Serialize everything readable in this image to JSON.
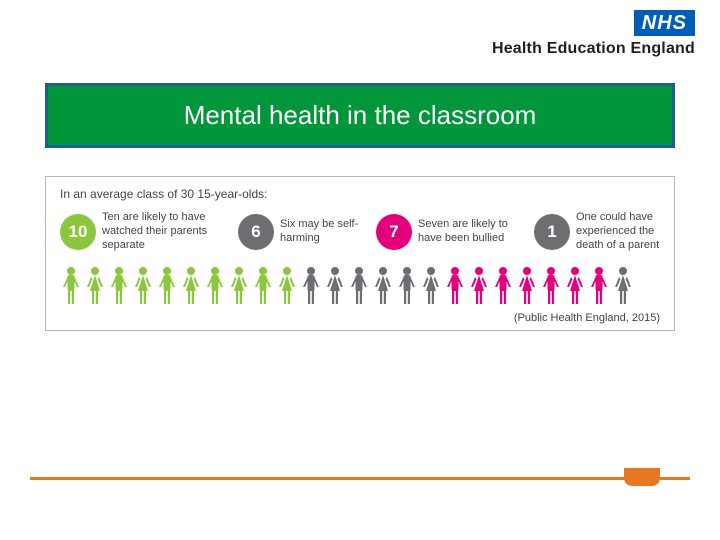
{
  "brand": {
    "logo_text": "NHS",
    "logo_bg": "#005eb8",
    "logo_fg": "#ffffff",
    "subtitle": "Health Education England",
    "subtitle_color": "#231f20"
  },
  "title": {
    "text": "Mental health in the classroom",
    "bg": "#009639",
    "border": "#1f5e8e",
    "color": "#ffffff",
    "fontsize": 26
  },
  "infographic": {
    "intro": "In an average class of 30 15-year-olds:",
    "border_color": "#b7b7b7",
    "text_color": "#444444",
    "stats": [
      {
        "number": "10",
        "label": "Ten are likely to have watched their parents separate",
        "color": "#8cc63f"
      },
      {
        "number": "6",
        "label": "Six may be self-harming",
        "color": "#6d6e71"
      },
      {
        "number": "7",
        "label": "Seven are likely to have been bullied",
        "color": "#e4007c"
      },
      {
        "number": "1",
        "label": "One could have experienced the death of a parent",
        "color": "#6d6e71"
      }
    ],
    "figures": [
      {
        "c": "#8cc63f",
        "g": "m"
      },
      {
        "c": "#8cc63f",
        "g": "f"
      },
      {
        "c": "#8cc63f",
        "g": "m"
      },
      {
        "c": "#8cc63f",
        "g": "f"
      },
      {
        "c": "#8cc63f",
        "g": "m"
      },
      {
        "c": "#8cc63f",
        "g": "f"
      },
      {
        "c": "#8cc63f",
        "g": "m"
      },
      {
        "c": "#8cc63f",
        "g": "f"
      },
      {
        "c": "#8cc63f",
        "g": "m"
      },
      {
        "c": "#8cc63f",
        "g": "f"
      },
      {
        "c": "#6d6e71",
        "g": "m"
      },
      {
        "c": "#6d6e71",
        "g": "f"
      },
      {
        "c": "#6d6e71",
        "g": "m"
      },
      {
        "c": "#6d6e71",
        "g": "f"
      },
      {
        "c": "#6d6e71",
        "g": "m"
      },
      {
        "c": "#6d6e71",
        "g": "f"
      },
      {
        "c": "#e4007c",
        "g": "m"
      },
      {
        "c": "#e4007c",
        "g": "f"
      },
      {
        "c": "#e4007c",
        "g": "m"
      },
      {
        "c": "#e4007c",
        "g": "f"
      },
      {
        "c": "#e4007c",
        "g": "m"
      },
      {
        "c": "#e4007c",
        "g": "f"
      },
      {
        "c": "#e4007c",
        "g": "m"
      },
      {
        "c": "#6d6e71",
        "g": "f"
      }
    ],
    "source": "(Public Health England, 2015)"
  },
  "footer": {
    "line_color": "#e87722"
  }
}
